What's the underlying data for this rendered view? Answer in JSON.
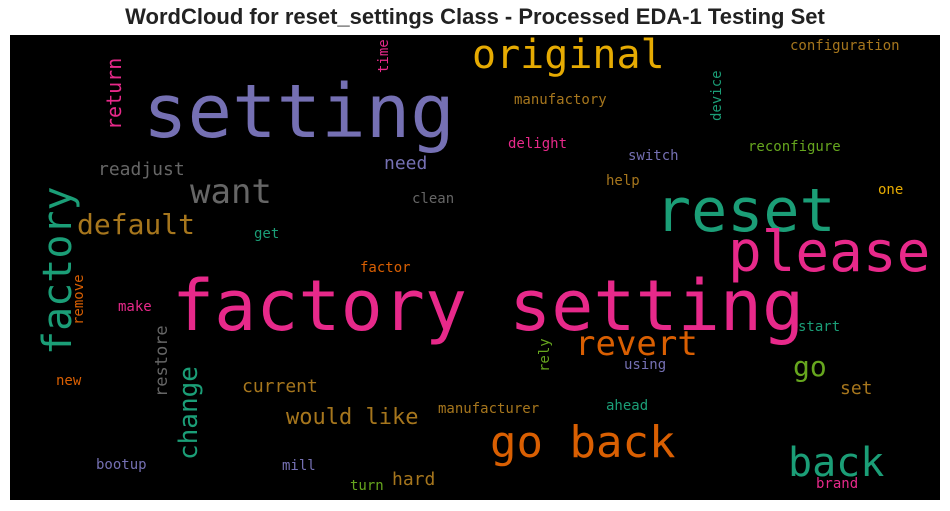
{
  "title": "WordCloud for reset_settings Class - Processed EDA-1 Testing Set",
  "chart_data": {
    "type": "wordcloud",
    "words": [
      {
        "text": "factory setting",
        "color": "#e7298a"
      },
      {
        "text": "setting",
        "color": "#7570b3"
      },
      {
        "text": "reset",
        "color": "#1b9e77"
      },
      {
        "text": "please",
        "color": "#e7298a"
      },
      {
        "text": "go back",
        "color": "#d95f02"
      },
      {
        "text": "original",
        "color": "#e6ab02"
      },
      {
        "text": "factory",
        "color": "#1b9e77"
      },
      {
        "text": "back",
        "color": "#1b9e77"
      },
      {
        "text": "want",
        "color": "#666666"
      },
      {
        "text": "revert",
        "color": "#d95f02"
      },
      {
        "text": "default",
        "color": "#a6761d"
      },
      {
        "text": "would like",
        "color": "#a6761d"
      },
      {
        "text": "go",
        "color": "#66a61e"
      },
      {
        "text": "change",
        "color": "#1b9e77"
      },
      {
        "text": "return",
        "color": "#e7298a"
      },
      {
        "text": "readjust",
        "color": "#666666"
      },
      {
        "text": "current",
        "color": "#a6761d"
      },
      {
        "text": "restore",
        "color": "#666666"
      },
      {
        "text": "hard",
        "color": "#a6761d"
      },
      {
        "text": "need",
        "color": "#7570b3"
      },
      {
        "text": "set",
        "color": "#a6761d"
      },
      {
        "text": "configuration",
        "color": "#a6761d"
      },
      {
        "text": "manufactory",
        "color": "#a6761d"
      },
      {
        "text": "delight",
        "color": "#e7298a"
      },
      {
        "text": "switch",
        "color": "#7570b3"
      },
      {
        "text": "reconfigure",
        "color": "#66a61e"
      },
      {
        "text": "help",
        "color": "#a6761d"
      },
      {
        "text": "one",
        "color": "#e6ab02"
      },
      {
        "text": "clean",
        "color": "#666666"
      },
      {
        "text": "get",
        "color": "#1b9e77"
      },
      {
        "text": "factor",
        "color": "#d95f02"
      },
      {
        "text": "make",
        "color": "#e7298a"
      },
      {
        "text": "remove",
        "color": "#d95f02"
      },
      {
        "text": "start",
        "color": "#1b9e77"
      },
      {
        "text": "new",
        "color": "#d95f02"
      },
      {
        "text": "using",
        "color": "#7570b3"
      },
      {
        "text": "rely",
        "color": "#66a61e"
      },
      {
        "text": "manufacturer",
        "color": "#a6761d"
      },
      {
        "text": "ahead",
        "color": "#1b9e77"
      },
      {
        "text": "bootup",
        "color": "#7570b3"
      },
      {
        "text": "mill",
        "color": "#7570b3"
      },
      {
        "text": "turn",
        "color": "#66a61e"
      },
      {
        "text": "brand",
        "color": "#e7298a"
      },
      {
        "text": "time",
        "color": "#e7298a"
      },
      {
        "text": "device",
        "color": "#1b9e77"
      }
    ]
  }
}
